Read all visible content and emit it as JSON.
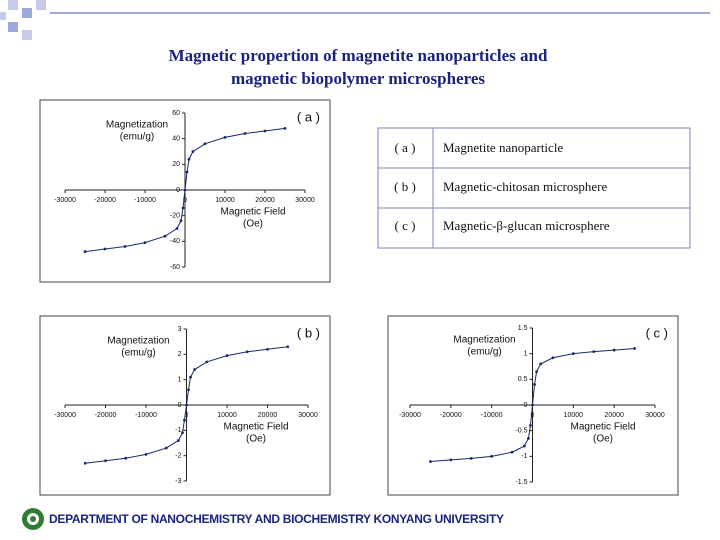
{
  "title": [
    "Magnetic propertion of magnetite nanoparticles and",
    "magnetic biopolymer microspheres"
  ],
  "table": {
    "rows": [
      [
        "( a )",
        "Magnetite nanoparticle"
      ],
      [
        "( b )",
        "Magnetic-chitosan microsphere"
      ],
      [
        "( c )",
        "Magnetic-β-glucan microsphere"
      ]
    ]
  },
  "footer": "DEPARTMENT OF NANOCHEMISTRY AND BIOCHEMISTRY KONYANG UNIVERSITY",
  "chart_data": [
    {
      "type": "line",
      "label": "( a )",
      "ylabel": [
        "Magnetization",
        "(emu/g)"
      ],
      "xlabel": [
        "Magnetic Field",
        "(Oe)"
      ],
      "color": "#1a2a6c",
      "x": [
        -25000,
        -20000,
        -15000,
        -10000,
        -5000,
        -2000,
        -1000,
        -500,
        0,
        500,
        1000,
        2000,
        5000,
        10000,
        15000,
        20000,
        25000
      ],
      "values": [
        -48,
        -46,
        -44,
        -41,
        -36,
        -30,
        -24,
        -14,
        0,
        14,
        24,
        30,
        36,
        41,
        44,
        46,
        48
      ],
      "xlim": [
        -30000,
        30000
      ],
      "xticks": [
        -30000,
        -20000,
        -10000,
        0,
        10000,
        20000,
        30000
      ],
      "ylim": [
        -60,
        60
      ],
      "yticks": [
        -60,
        -40,
        -20,
        0,
        20,
        40,
        60
      ],
      "grid": false
    },
    {
      "type": "line",
      "label": "( b )",
      "ylabel": [
        "Magnetization",
        "(emu/g)"
      ],
      "xlabel": [
        "Magnetic Field",
        "(Oe)"
      ],
      "color": "#1a2a6c",
      "x": [
        -25000,
        -20000,
        -15000,
        -10000,
        -5000,
        -2000,
        -1000,
        -500,
        0,
        500,
        1000,
        2000,
        5000,
        10000,
        15000,
        20000,
        25000
      ],
      "values": [
        -2.3,
        -2.2,
        -2.1,
        -1.95,
        -1.7,
        -1.4,
        -1.1,
        -0.6,
        0,
        0.6,
        1.1,
        1.4,
        1.7,
        1.95,
        2.1,
        2.2,
        2.3
      ],
      "xlim": [
        -30000,
        30000
      ],
      "xticks": [
        -30000,
        -20000,
        -10000,
        0,
        10000,
        20000,
        30000
      ],
      "ylim": [
        -3,
        3
      ],
      "yticks": [
        -3,
        -2,
        -1,
        0,
        1,
        2,
        3
      ],
      "grid": false
    },
    {
      "type": "line",
      "label": "( c )",
      "ylabel": [
        "Magnetization",
        "(emu/g)"
      ],
      "xlabel": [
        "Magnetic Field",
        "(Oe)"
      ],
      "color": "#1a2a6c",
      "x": [
        -25000,
        -20000,
        -15000,
        -10000,
        -5000,
        -2000,
        -1000,
        -500,
        0,
        500,
        1000,
        2000,
        5000,
        10000,
        15000,
        20000,
        25000
      ],
      "values": [
        -1.1,
        -1.07,
        -1.04,
        -1.0,
        -0.92,
        -0.8,
        -0.65,
        -0.4,
        0,
        0.4,
        0.65,
        0.8,
        0.92,
        1.0,
        1.04,
        1.07,
        1.1
      ],
      "xlim": [
        -30000,
        30000
      ],
      "xticks": [
        -30000,
        -20000,
        -10000,
        0,
        10000,
        20000,
        30000
      ],
      "ylim": [
        -1.5,
        1.5
      ],
      "yticks": [
        -1.5,
        -1,
        -0.5,
        0,
        0.5,
        1,
        1.5
      ],
      "grid": false
    }
  ]
}
